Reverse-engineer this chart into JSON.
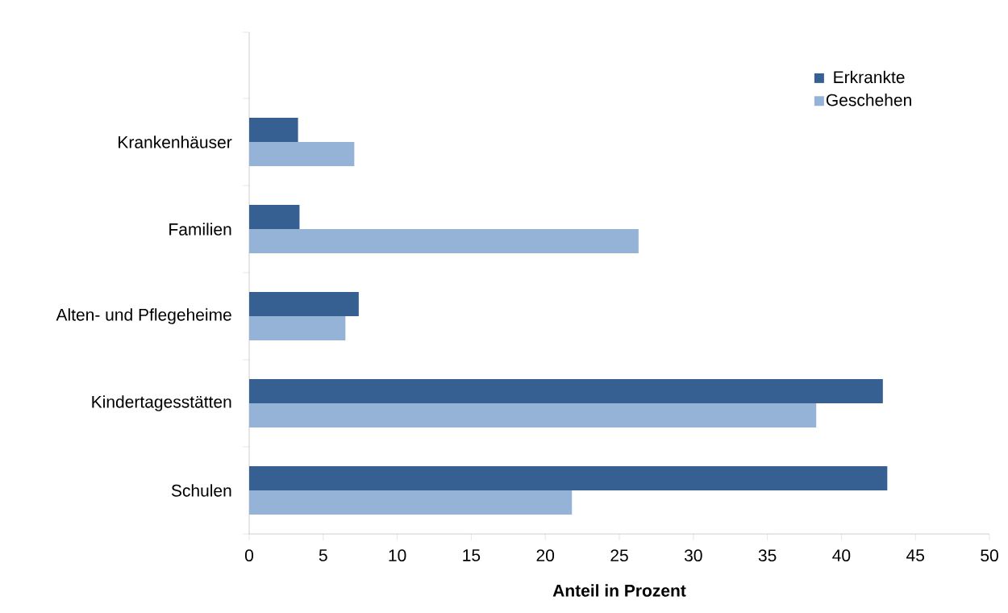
{
  "chart_data": {
    "type": "bar",
    "orientation": "horizontal",
    "xlabel": "Anteil in Prozent",
    "categories": [
      "Krankenhäuser",
      "Familien",
      "Alten- und Pflegeheime",
      "Kindertagesstätten",
      "Schulen"
    ],
    "series": [
      {
        "name": "Erkrankte",
        "color": "#376092",
        "values": [
          3.3,
          3.4,
          7.4,
          42.8,
          43.1
        ]
      },
      {
        "name": "Geschehen",
        "color": "#95b3d7",
        "values": [
          7.1,
          26.3,
          6.5,
          38.3,
          21.8
        ]
      }
    ],
    "xlim": [
      0,
      50
    ],
    "xticks": [
      0,
      5,
      10,
      15,
      20,
      25,
      30,
      35,
      40,
      45,
      50
    ],
    "legend": "top right"
  }
}
